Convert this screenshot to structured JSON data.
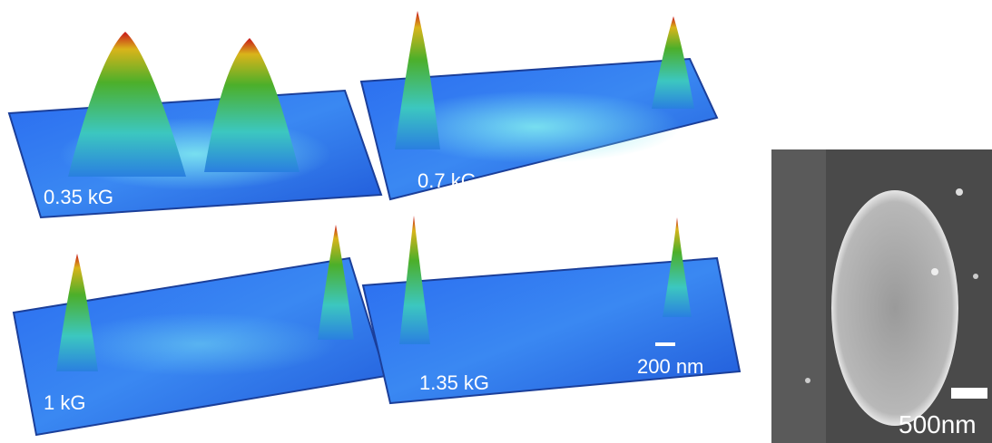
{
  "panels": [
    {
      "label": "0.35 kG"
    },
    {
      "label": "0.7 kG"
    },
    {
      "label": "1 kG"
    },
    {
      "label": "1.35 kG"
    }
  ],
  "panel_scale_bar": "200 nm",
  "sem": {
    "scale_bar": "500nm"
  }
}
